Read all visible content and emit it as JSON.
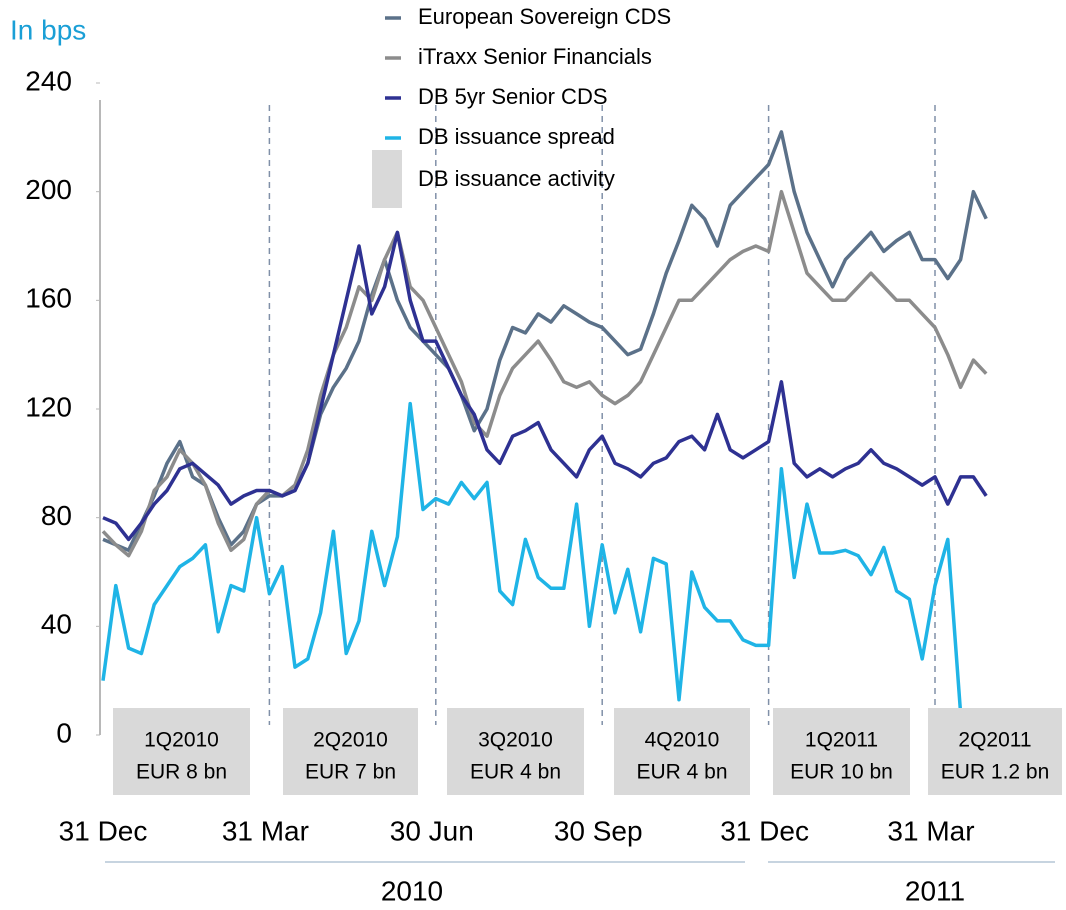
{
  "chart_data": {
    "type": "line",
    "y_axis_label": "In bps",
    "ylim": [
      0,
      240
    ],
    "yticks": [
      0,
      40,
      80,
      120,
      160,
      200,
      240
    ],
    "categories": [
      "31 Dec",
      null,
      null,
      null,
      null,
      null,
      null,
      null,
      null,
      null,
      null,
      null,
      null,
      "31 Mar",
      null,
      null,
      null,
      null,
      null,
      null,
      null,
      null,
      null,
      null,
      null,
      null,
      "30 Jun",
      null,
      null,
      null,
      null,
      null,
      null,
      null,
      null,
      null,
      null,
      null,
      null,
      "30 Sep",
      null,
      null,
      null,
      null,
      null,
      null,
      null,
      null,
      null,
      null,
      null,
      null,
      "31 Dec",
      null,
      null,
      null,
      null,
      null,
      null,
      null,
      null,
      null,
      null,
      null,
      null,
      "31 Mar",
      null,
      null,
      null,
      null
    ],
    "years": [
      "2010",
      "2011"
    ],
    "series": [
      {
        "name": "European Sovereign CDS",
        "color": "#5b7189",
        "values": [
          72,
          70,
          68,
          78,
          88,
          100,
          108,
          95,
          92,
          80,
          70,
          75,
          85,
          88,
          88,
          90,
          100,
          118,
          128,
          135,
          145,
          162,
          175,
          160,
          150,
          145,
          140,
          135,
          125,
          112,
          120,
          138,
          150,
          148,
          155,
          152,
          158,
          155,
          152,
          150,
          145,
          140,
          142,
          155,
          170,
          182,
          195,
          190,
          180,
          195,
          200,
          205,
          210,
          222,
          200,
          185,
          175,
          165,
          175,
          180,
          185,
          178,
          182,
          185,
          175,
          175,
          168,
          175,
          200,
          190
        ]
      },
      {
        "name": "iTraxx Senior Financials",
        "color": "#8c8c8c",
        "values": [
          75,
          70,
          66,
          75,
          90,
          95,
          105,
          100,
          92,
          78,
          68,
          72,
          85,
          90,
          88,
          92,
          105,
          125,
          140,
          150,
          165,
          160,
          175,
          185,
          165,
          160,
          150,
          140,
          130,
          115,
          110,
          125,
          135,
          140,
          145,
          138,
          130,
          128,
          130,
          125,
          122,
          125,
          130,
          140,
          150,
          160,
          160,
          165,
          170,
          175,
          178,
          180,
          178,
          200,
          185,
          170,
          165,
          160,
          160,
          165,
          170,
          165,
          160,
          160,
          155,
          150,
          140,
          128,
          138,
          133
        ]
      },
      {
        "name": "DB 5yr Senior CDS",
        "color": "#2e3192",
        "values": [
          80,
          78,
          72,
          78,
          85,
          90,
          98,
          100,
          96,
          92,
          85,
          88,
          90,
          90,
          88,
          90,
          100,
          120,
          140,
          160,
          180,
          155,
          165,
          185,
          160,
          145,
          145,
          135,
          125,
          118,
          105,
          100,
          110,
          112,
          115,
          105,
          100,
          95,
          105,
          110,
          100,
          98,
          95,
          100,
          102,
          108,
          110,
          105,
          118,
          105,
          102,
          105,
          108,
          130,
          100,
          95,
          98,
          95,
          98,
          100,
          105,
          100,
          98,
          95,
          92,
          95,
          85,
          95,
          95,
          88
        ]
      },
      {
        "name": "DB issuance spread",
        "color": "#1fb4e6",
        "values": [
          20,
          55,
          32,
          30,
          48,
          55,
          62,
          65,
          70,
          38,
          55,
          53,
          80,
          52,
          62,
          25,
          28,
          45,
          75,
          30,
          42,
          75,
          55,
          73,
          122,
          83,
          87,
          85,
          93,
          87,
          93,
          53,
          48,
          72,
          58,
          54,
          54,
          85,
          40,
          70,
          45,
          61,
          38,
          65,
          63,
          13,
          60,
          47,
          42,
          42,
          35,
          33,
          33,
          98,
          58,
          85,
          67,
          67,
          68,
          66,
          59,
          69,
          53,
          50,
          28,
          55,
          72,
          8,
          4,
          null
        ]
      }
    ],
    "activity_legend": "DB issuance activity",
    "quarters": [
      {
        "label": "1Q2010",
        "amount": "EUR 8 bn"
      },
      {
        "label": "2Q2010",
        "amount": "EUR 7 bn"
      },
      {
        "label": "3Q2010",
        "amount": "EUR 4 bn"
      },
      {
        "label": "4Q2010",
        "amount": "EUR 4 bn"
      },
      {
        "label": "1Q2011",
        "amount": "EUR 10 bn"
      },
      {
        "label": "2Q2011",
        "amount": "EUR 1.2 bn"
      }
    ]
  }
}
